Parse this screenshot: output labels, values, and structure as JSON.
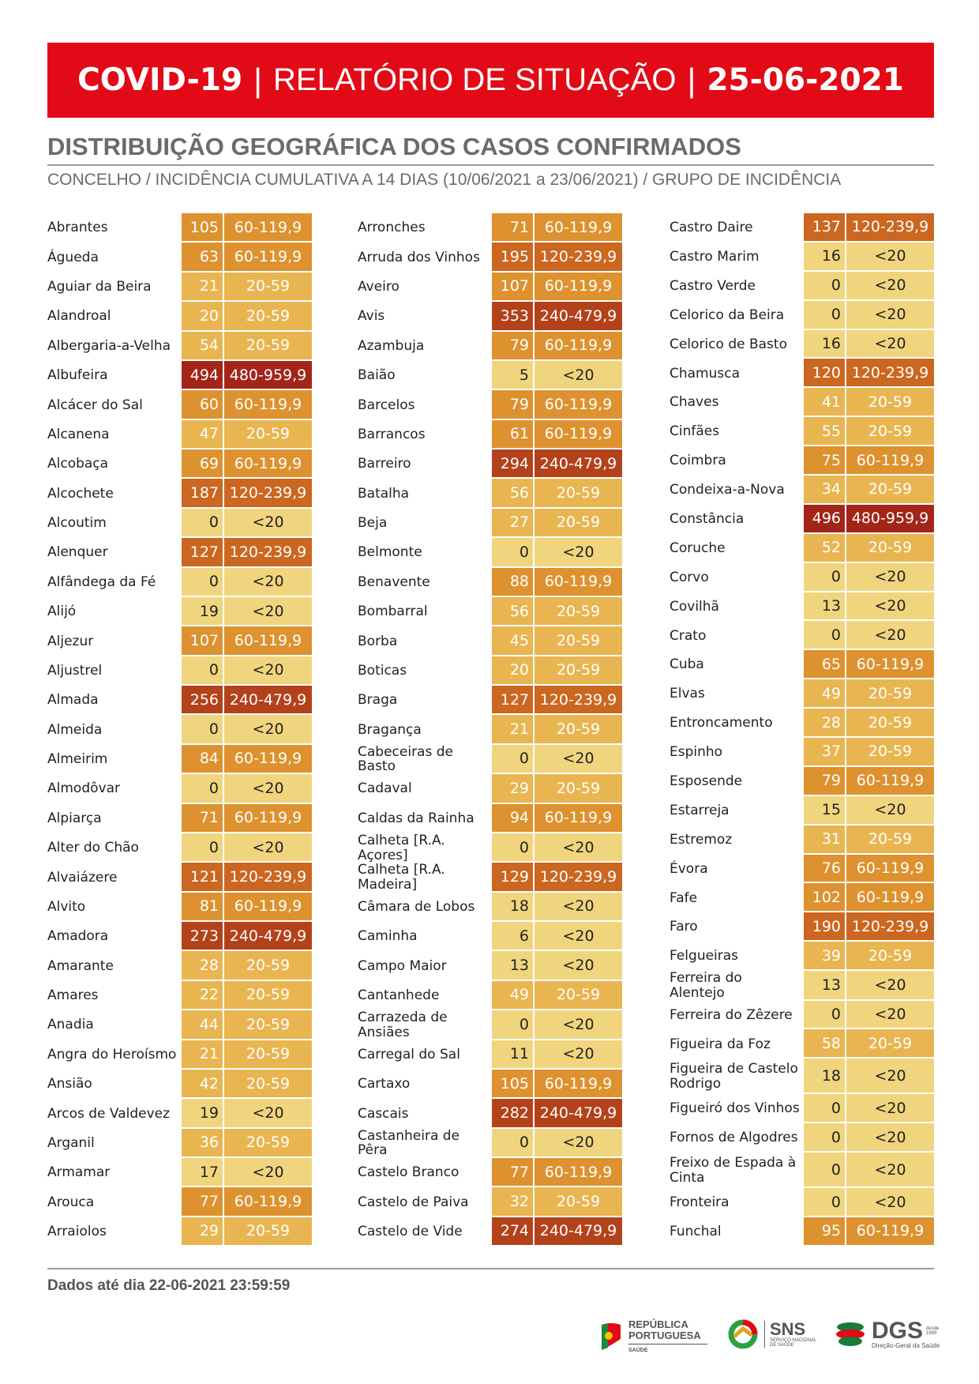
{
  "header": {
    "part1": "COVID-19",
    "sep1": "|",
    "part2": "RELATÓRIO DE SITUAÇÃO",
    "sep2": "|",
    "date": "25-06-2021"
  },
  "section_title": "DISTRIBUIÇÃO GEOGRÁFICA DOS CASOS CONFIRMADOS",
  "subtitle": "CONCELHO / INCIDÊNCIA CUMULATIVA A 14 DIAS (10/06/2021 a 23/06/2021) / GRUPO DE INCIDÊNCIA",
  "group_colors": {
    "<20": "#f1d57e",
    "20-59": "#e8b550",
    "60-119,9": "#dd922f",
    "120-239,9": "#cb6720",
    "240-479,9": "#b3421b",
    "480-959,9": "#a3251a"
  },
  "columns": [
    [
      [
        "Abrantes",
        105,
        "60-119,9"
      ],
      [
        "Águeda",
        63,
        "60-119,9"
      ],
      [
        "Aguiar da Beira",
        21,
        "20-59"
      ],
      [
        "Alandroal",
        20,
        "20-59"
      ],
      [
        "Albergaria-a-Velha",
        54,
        "20-59"
      ],
      [
        "Albufeira",
        494,
        "480-959,9"
      ],
      [
        "Alcácer do Sal",
        60,
        "60-119,9"
      ],
      [
        "Alcanena",
        47,
        "20-59"
      ],
      [
        "Alcobaça",
        69,
        "60-119,9"
      ],
      [
        "Alcochete",
        187,
        "120-239,9"
      ],
      [
        "Alcoutim",
        0,
        "<20"
      ],
      [
        "Alenquer",
        127,
        "120-239,9"
      ],
      [
        "Alfândega da Fé",
        0,
        "<20"
      ],
      [
        "Alijó",
        19,
        "<20"
      ],
      [
        "Aljezur",
        107,
        "60-119,9"
      ],
      [
        "Aljustrel",
        0,
        "<20"
      ],
      [
        "Almada",
        256,
        "240-479,9"
      ],
      [
        "Almeida",
        0,
        "<20"
      ],
      [
        "Almeirim",
        84,
        "60-119,9"
      ],
      [
        "Almodôvar",
        0,
        "<20"
      ],
      [
        "Alpiarça",
        71,
        "60-119,9"
      ],
      [
        "Alter do Chão",
        0,
        "<20"
      ],
      [
        "Alvaiázere",
        121,
        "120-239,9"
      ],
      [
        "Alvito",
        81,
        "60-119,9"
      ],
      [
        "Amadora",
        273,
        "240-479,9"
      ],
      [
        "Amarante",
        28,
        "20-59"
      ],
      [
        "Amares",
        22,
        "20-59"
      ],
      [
        "Anadia",
        44,
        "20-59"
      ],
      [
        "Angra do Heroísmo",
        21,
        "20-59"
      ],
      [
        "Ansião",
        42,
        "20-59"
      ],
      [
        "Arcos de Valdevez",
        19,
        "<20"
      ],
      [
        "Arganil",
        36,
        "20-59"
      ],
      [
        "Armamar",
        17,
        "<20"
      ],
      [
        "Arouca",
        77,
        "60-119,9"
      ],
      [
        "Arraiolos",
        29,
        "20-59"
      ]
    ],
    [
      [
        "Arronches",
        71,
        "60-119,9"
      ],
      [
        "Arruda dos Vinhos",
        195,
        "120-239,9"
      ],
      [
        "Aveiro",
        107,
        "60-119,9"
      ],
      [
        "Avis",
        353,
        "240-479,9"
      ],
      [
        "Azambuja",
        79,
        "60-119,9"
      ],
      [
        "Baião",
        5,
        "<20"
      ],
      [
        "Barcelos",
        79,
        "60-119,9"
      ],
      [
        "Barrancos",
        61,
        "60-119,9"
      ],
      [
        "Barreiro",
        294,
        "240-479,9"
      ],
      [
        "Batalha",
        56,
        "20-59"
      ],
      [
        "Beja",
        27,
        "20-59"
      ],
      [
        "Belmonte",
        0,
        "<20"
      ],
      [
        "Benavente",
        88,
        "60-119,9"
      ],
      [
        "Bombarral",
        56,
        "20-59"
      ],
      [
        "Borba",
        45,
        "20-59"
      ],
      [
        "Boticas",
        20,
        "20-59"
      ],
      [
        "Braga",
        127,
        "120-239,9"
      ],
      [
        "Bragança",
        21,
        "20-59"
      ],
      [
        "Cabeceiras de Basto",
        0,
        "<20"
      ],
      [
        "Cadaval",
        29,
        "20-59"
      ],
      [
        "Caldas da Rainha",
        94,
        "60-119,9"
      ],
      [
        "Calheta [R.A. Açores]",
        0,
        "<20"
      ],
      [
        "Calheta [R.A. Madeira]",
        129,
        "120-239,9"
      ],
      [
        "Câmara de Lobos",
        18,
        "<20"
      ],
      [
        "Caminha",
        6,
        "<20"
      ],
      [
        "Campo Maior",
        13,
        "<20"
      ],
      [
        "Cantanhede",
        49,
        "20-59"
      ],
      [
        "Carrazeda de Ansiães",
        0,
        "<20"
      ],
      [
        "Carregal do Sal",
        11,
        "<20"
      ],
      [
        "Cartaxo",
        105,
        "60-119,9"
      ],
      [
        "Cascais",
        282,
        "240-479,9"
      ],
      [
        "Castanheira de Pêra",
        0,
        "<20"
      ],
      [
        "Castelo Branco",
        77,
        "60-119,9"
      ],
      [
        "Castelo de Paiva",
        32,
        "20-59"
      ],
      [
        "Castelo de Vide",
        274,
        "240-479,9"
      ]
    ],
    [
      [
        "Castro Daire",
        137,
        "120-239,9"
      ],
      [
        "Castro Marim",
        16,
        "<20"
      ],
      [
        "Castro Verde",
        0,
        "<20"
      ],
      [
        "Celorico da Beira",
        0,
        "<20"
      ],
      [
        "Celorico de Basto",
        16,
        "<20"
      ],
      [
        "Chamusca",
        120,
        "120-239,9"
      ],
      [
        "Chaves",
        41,
        "20-59"
      ],
      [
        "Cinfães",
        55,
        "20-59"
      ],
      [
        "Coimbra",
        75,
        "60-119,9"
      ],
      [
        "Condeixa-a-Nova",
        34,
        "20-59"
      ],
      [
        "Constância",
        496,
        "480-959,9"
      ],
      [
        "Coruche",
        52,
        "20-59"
      ],
      [
        "Corvo",
        0,
        "<20"
      ],
      [
        "Covilhã",
        13,
        "<20"
      ],
      [
        "Crato",
        0,
        "<20"
      ],
      [
        "Cuba",
        65,
        "60-119,9"
      ],
      [
        "Elvas",
        49,
        "20-59"
      ],
      [
        "Entroncamento",
        28,
        "20-59"
      ],
      [
        "Espinho",
        37,
        "20-59"
      ],
      [
        "Esposende",
        79,
        "60-119,9"
      ],
      [
        "Estarreja",
        15,
        "<20"
      ],
      [
        "Estremoz",
        31,
        "20-59"
      ],
      [
        "Évora",
        76,
        "60-119,9"
      ],
      [
        "Fafe",
        102,
        "60-119,9"
      ],
      [
        "Faro",
        190,
        "120-239,9"
      ],
      [
        "Felgueiras",
        39,
        "20-59"
      ],
      [
        "Ferreira do Alentejo",
        13,
        "<20"
      ],
      [
        "Ferreira do Zêzere",
        0,
        "<20"
      ],
      [
        "Figueira da Foz",
        58,
        "20-59"
      ],
      [
        "Figueira de Castelo Rodrigo",
        18,
        "<20"
      ],
      [
        "Figueiró dos Vinhos",
        0,
        "<20"
      ],
      [
        "Fornos de Algodres",
        0,
        "<20"
      ],
      [
        "Freixo de Espada à Cinta",
        0,
        "<20"
      ],
      [
        "Fronteira",
        0,
        "<20"
      ],
      [
        "Funchal",
        95,
        "60-119,9"
      ]
    ]
  ],
  "footer": "Dados até dia 22-06-2021 23:59:59",
  "logos": {
    "republica": "REPÚBLICA PORTUGUESA",
    "republica_sub": "SAÚDE",
    "sns": "SNS",
    "sns_sub": "SERVIÇO NACIONAL DE SAÚDE",
    "dgs": "DGS",
    "dgs_year": "desde 1899",
    "dgs_sub": "Direção-Geral da Saúde"
  }
}
